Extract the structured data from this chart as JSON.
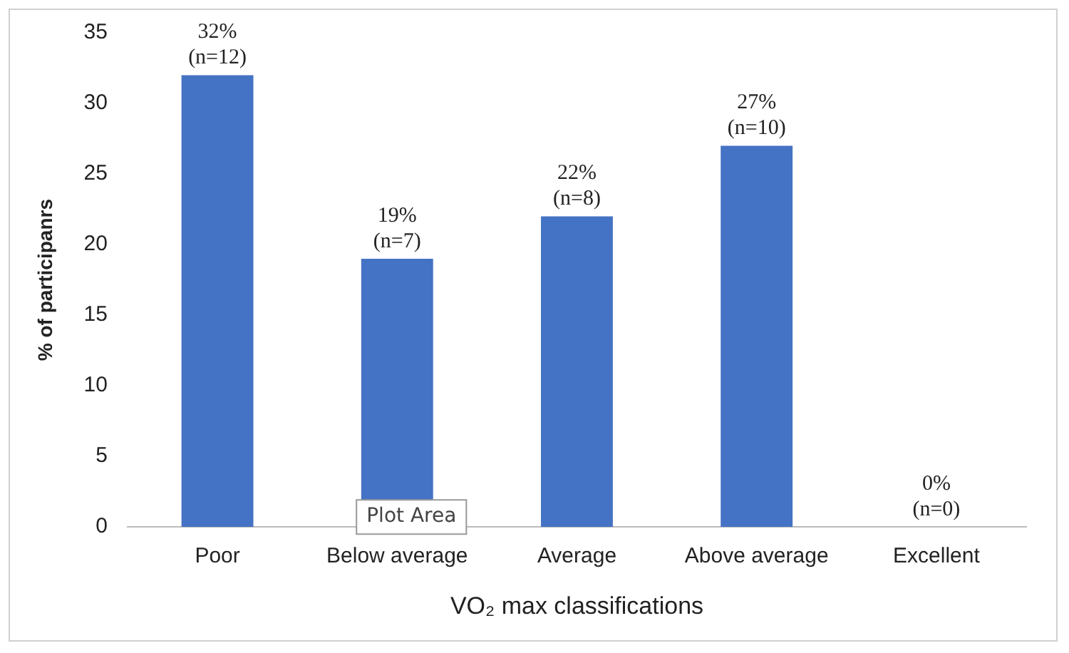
{
  "chart_data": {
    "type": "bar",
    "categories": [
      "Poor",
      "Below average",
      "Average",
      "Above average",
      "Excellent"
    ],
    "values": [
      32,
      19,
      22,
      27,
      0
    ],
    "value_labels": [
      "32%\n(n=12)",
      "19%\n(n=7)",
      "22%\n(n=8)",
      "27%\n(n=10)",
      "0%\n(n=0)"
    ],
    "color": "#4472c4",
    "xlabel": "VO₂ max classifications",
    "ylabel": "% of participanrs",
    "ylim": [
      0,
      35
    ],
    "yticks": [
      0,
      5,
      10,
      15,
      20,
      25,
      30,
      35
    ],
    "grid": false,
    "legend": false,
    "annotations": [
      "Plot Area"
    ]
  }
}
